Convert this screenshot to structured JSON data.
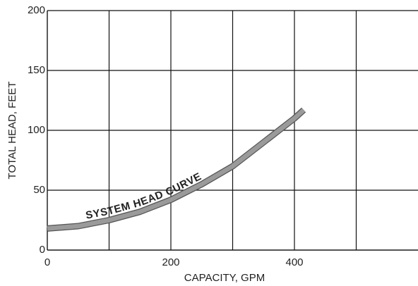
{
  "chart_data": {
    "type": "line",
    "annotation": "SYSTEM HEAD CURVE",
    "xlabel": "CAPACITY, GPM",
    "ylabel": "TOTAL HEAD, FEET",
    "x": [
      0,
      50,
      100,
      150,
      200,
      250,
      300,
      350,
      400,
      415
    ],
    "values": [
      18,
      20,
      25,
      32,
      42,
      55,
      70,
      90,
      110,
      117
    ],
    "color": "#9a9a9a",
    "xlim": [
      0,
      600
    ],
    "xticks": [
      0,
      200,
      400
    ],
    "xminor": [
      100,
      300,
      500
    ],
    "ylim": [
      0,
      200
    ],
    "yticks": [
      0,
      50,
      100,
      150,
      200
    ],
    "grid": true
  }
}
